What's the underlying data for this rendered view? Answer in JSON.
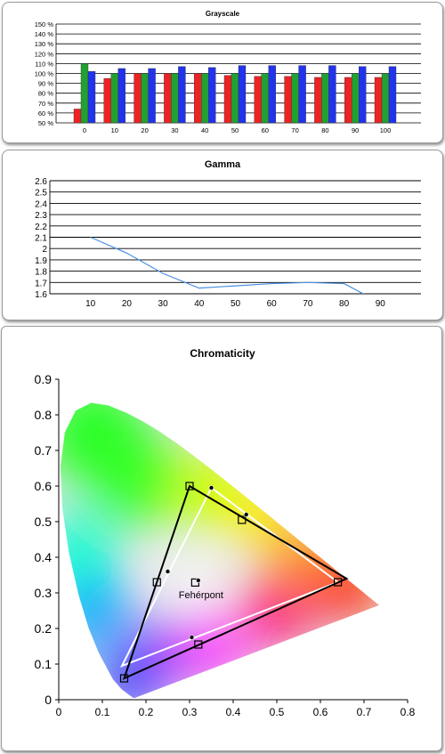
{
  "colors": {
    "red": "#ee2222",
    "green": "#22a032",
    "blue": "#2233ee",
    "gamma_line": "#4a8fe0",
    "gamut_measured": "#000000",
    "gamut_reference": "#ffffff"
  },
  "chart_data": [
    {
      "type": "bar",
      "title": "Grayscale",
      "categories": [
        "0",
        "10",
        "20",
        "30",
        "40",
        "50",
        "60",
        "70",
        "80",
        "90",
        "100"
      ],
      "series": [
        {
          "color": "red",
          "values": [
            64,
            95,
            100,
            100,
            100,
            98,
            97,
            97,
            96,
            96,
            96
          ]
        },
        {
          "color": "green",
          "values": [
            110,
            100,
            100,
            100,
            100,
            100,
            100,
            100,
            100,
            100,
            100
          ]
        },
        {
          "color": "blue",
          "values": [
            102,
            105,
            105,
            107,
            106,
            108,
            108,
            108,
            108,
            107,
            107
          ]
        }
      ],
      "ylim": [
        50,
        150
      ],
      "ytick_values": [
        50,
        60,
        70,
        80,
        90,
        100,
        110,
        120,
        130,
        140,
        150
      ],
      "yticks": [
        "50 %",
        "60 %",
        "70 %",
        "80 %",
        "90 %",
        "100 %",
        "110 %",
        "120 %",
        "130 %",
        "140 %",
        "150 %"
      ],
      "grid": true
    },
    {
      "type": "line",
      "title": "Gamma",
      "x": [
        10,
        20,
        30,
        40,
        50,
        60,
        70,
        80,
        90
      ],
      "y": [
        2.1,
        1.96,
        1.78,
        1.65,
        1.67,
        1.69,
        1.7,
        1.69,
        1.52
      ],
      "xticks": [
        "10",
        "20",
        "30",
        "40",
        "50",
        "60",
        "70",
        "80",
        "90"
      ],
      "xlim": [
        0,
        100
      ],
      "ylim": [
        1.6,
        2.6
      ],
      "ytick_values": [
        1.6,
        1.7,
        1.8,
        1.9,
        2.0,
        2.1,
        2.2,
        2.3,
        2.4,
        2.5,
        2.6
      ],
      "yticks": [
        "1.6",
        "1.7",
        "1.8",
        "1.9",
        "2",
        "2.1",
        "2.2",
        "2.3",
        "2.4",
        "2.5",
        "2.6"
      ],
      "grid": true
    },
    {
      "type": "scatter",
      "title": "Chromaticity",
      "xlim": [
        0,
        0.8
      ],
      "ylim": [
        0,
        0.9
      ],
      "xtick_values": [
        0,
        0.1,
        0.2,
        0.3,
        0.4,
        0.5,
        0.6,
        0.7,
        0.8
      ],
      "xticks": [
        "0",
        "0.1",
        "0.2",
        "0.3",
        "0.4",
        "0.5",
        "0.6",
        "0.7",
        "0.8"
      ],
      "ytick_values": [
        0,
        0.1,
        0.2,
        0.3,
        0.4,
        0.5,
        0.6,
        0.7,
        0.8,
        0.9
      ],
      "yticks": [
        "0",
        "0.1",
        "0.2",
        "0.3",
        "0.4",
        "0.5",
        "0.6",
        "0.7",
        "0.8",
        "0.9"
      ],
      "gamut_measured": {
        "red": [
          0.66,
          0.34
        ],
        "green": [
          0.3,
          0.6
        ],
        "blue": [
          0.15,
          0.06
        ]
      },
      "gamut_reference": {
        "red": [
          0.64,
          0.33
        ],
        "green": [
          0.35,
          0.595
        ],
        "blue": [
          0.145,
          0.095
        ]
      },
      "targets": [
        {
          "x": 0.3,
          "y": 0.6
        },
        {
          "x": 0.42,
          "y": 0.505
        },
        {
          "x": 0.64,
          "y": 0.33
        },
        {
          "x": 0.225,
          "y": 0.33
        },
        {
          "x": 0.15,
          "y": 0.06
        },
        {
          "x": 0.32,
          "y": 0.155
        },
        {
          "x": 0.313,
          "y": 0.329
        }
      ],
      "measured_points": [
        {
          "x": 0.35,
          "y": 0.595
        },
        {
          "x": 0.43,
          "y": 0.52
        },
        {
          "x": 0.25,
          "y": 0.36
        },
        {
          "x": 0.305,
          "y": 0.175
        },
        {
          "x": 0.32,
          "y": 0.335
        }
      ],
      "whitepoint_label": "Fehérpont"
    }
  ]
}
